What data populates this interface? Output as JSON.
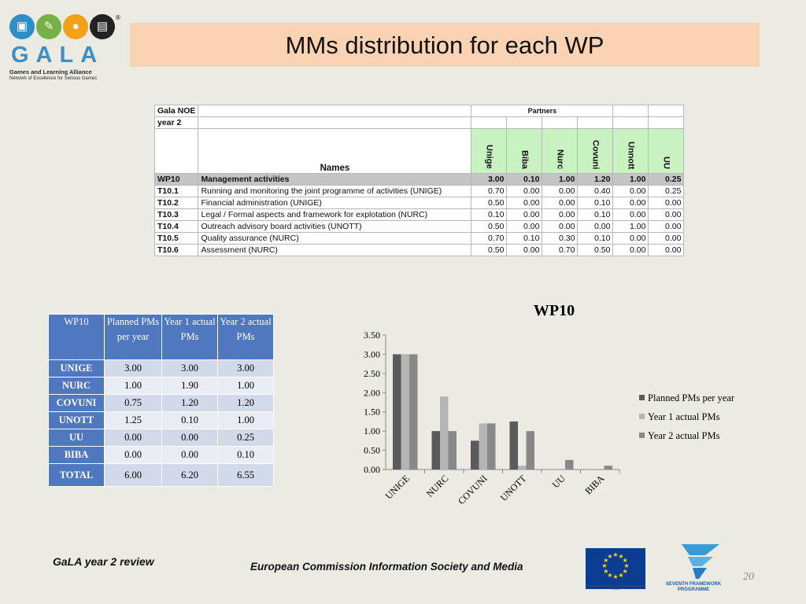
{
  "title": "MMs distribution for each WP",
  "logo": {
    "word": "GALA",
    "subtitle": "Games and Learning Alliance",
    "tagline": "Network of Excellence for Serious Games",
    "registered": "®",
    "circle_colors": [
      "#2e8fc8",
      "#77b046",
      "#f1a11a",
      "#222222"
    ],
    "icons": [
      "laptop-icon",
      "pen-icon",
      "gamepad-icon",
      "book-icon"
    ]
  },
  "partners_table": {
    "corner_label": "Gala NOE",
    "partners_label": "Partners",
    "year_label": "year 2",
    "names_label": "Names",
    "partners": [
      "Unige",
      "Biba",
      "Nurc",
      "Covuni",
      "Unnott",
      "UU"
    ],
    "rows": [
      {
        "code": "WP10",
        "name": "Management activities",
        "values": [
          "3.00",
          "0.10",
          "1.00",
          "1.20",
          "1.00",
          "0.25"
        ],
        "is_wp": true
      },
      {
        "code": "T10.1",
        "name": "Running and monitoring the joint programme of activities (UNIGE)",
        "values": [
          "0.70",
          "0.00",
          "0.00",
          "0.40",
          "0.00",
          "0.25"
        ]
      },
      {
        "code": "T10.2",
        "name": "Financial administration (UNIGE)",
        "values": [
          "0.50",
          "0.00",
          "0.00",
          "0.10",
          "0.00",
          "0.00"
        ]
      },
      {
        "code": "T10.3",
        "name": "Legal / Formal aspects and framework for explotation (NURC)",
        "values": [
          "0.10",
          "0.00",
          "0.00",
          "0.10",
          "0.00",
          "0.00"
        ]
      },
      {
        "code": "T10.4",
        "name": "Outreach advisory board activities (UNOTT)",
        "values": [
          "0.50",
          "0.00",
          "0.00",
          "0.00",
          "1.00",
          "0.00"
        ]
      },
      {
        "code": "T10.5",
        "name": "Quality assurance (NURC)",
        "values": [
          "0.70",
          "0.10",
          "0.30",
          "0.10",
          "0.00",
          "0.00"
        ]
      },
      {
        "code": "T10.6",
        "name": "Assessment (NURC)",
        "values": [
          "0.50",
          "0.00",
          "0.70",
          "0.50",
          "0.00",
          "0.00"
        ]
      }
    ]
  },
  "summary_table": {
    "headers": [
      "WP10",
      "Planned PMs per year",
      "Year 1 actual PMs",
      "Year 2 actual PMs"
    ],
    "rows": [
      {
        "label": "UNIGE",
        "values": [
          "3.00",
          "3.00",
          "3.00"
        ]
      },
      {
        "label": "NURC",
        "values": [
          "1.00",
          "1.90",
          "1.00"
        ]
      },
      {
        "label": "COVUNI",
        "values": [
          "0.75",
          "1.20",
          "1.20"
        ]
      },
      {
        "label": "UNOTT",
        "values": [
          "1.25",
          "0.10",
          "1.00"
        ]
      },
      {
        "label": "UU",
        "values": [
          "0.00",
          "0.00",
          "0.25"
        ]
      },
      {
        "label": "BIBA",
        "values": [
          "0.00",
          "0.00",
          "0.10"
        ]
      },
      {
        "label": "TOTAL",
        "values": [
          "6.00",
          "6.20",
          "6.55"
        ]
      }
    ]
  },
  "chart_data": {
    "type": "bar",
    "title": "WP10",
    "categories": [
      "UNIGE",
      "NURC",
      "COVUNI",
      "UNOTT",
      "UU",
      "BIBA"
    ],
    "series": [
      {
        "name": "Planned PMs per year",
        "values": [
          3.0,
          1.0,
          0.75,
          1.25,
          0.0,
          0.0
        ],
        "color": "#5a5a5a"
      },
      {
        "name": "Year 1 actual PMs",
        "values": [
          3.0,
          1.9,
          1.2,
          0.1,
          0.0,
          0.0
        ],
        "color": "#b4b4b4"
      },
      {
        "name": "Year 2 actual PMs",
        "values": [
          3.0,
          1.0,
          1.2,
          1.0,
          0.25,
          0.1
        ],
        "color": "#888888"
      }
    ],
    "ylim": [
      0,
      3.5
    ],
    "yticks": [
      "0.00",
      "0.50",
      "1.00",
      "1.50",
      "2.00",
      "2.50",
      "3.00",
      "3.50"
    ],
    "legend": "right",
    "grid": false
  },
  "footer": {
    "left": "GaLA year 2 review",
    "center": "European Commission Information Society and Media",
    "page": "20",
    "eu_flag_color": "#0a3d91",
    "eu_caption": "European Commission Information Society and Media",
    "fp7_label": [
      "SEVENTH FRAMEWORK",
      "PROGRAMME"
    ]
  }
}
